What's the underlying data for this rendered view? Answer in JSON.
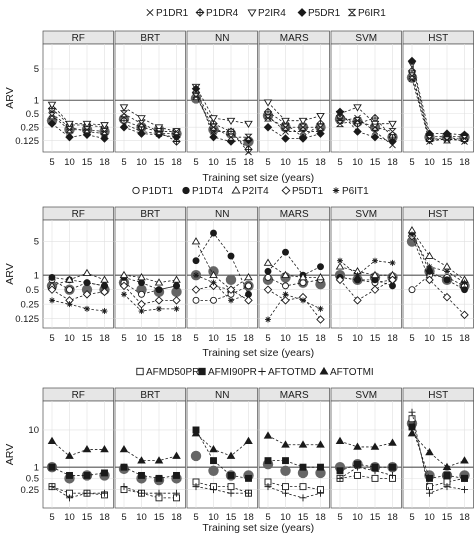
{
  "figure": {
    "panels_title": "",
    "colors": {
      "strip_bg": "#e6e6e6",
      "panel_border": "#4d4d4d",
      "grid": "#e0e0e0",
      "refline": "#555555",
      "series": "#1a1a1a",
      "mean": "#666666"
    }
  },
  "chart_data": [
    {
      "type": "line",
      "title": "",
      "ylabel": "ARV",
      "xlabel": "Training set size (years)",
      "scale_y": "log",
      "ylim": [
        0.07,
        18
      ],
      "yticks": [
        0.125,
        0.25,
        0.5,
        1,
        5
      ],
      "ytick_labels": [
        "0.125",
        "0.25",
        "0.5",
        "1",
        "5"
      ],
      "x": [
        5,
        10,
        15,
        18
      ],
      "xtick_labels": [
        "5",
        "10",
        "15",
        "18"
      ],
      "reference_line": 1,
      "legend": {
        "position": "top"
      },
      "facets": [
        "RF",
        "BRT",
        "NN",
        "MARS",
        "SVM",
        "HST"
      ],
      "series": [
        {
          "name": "P1DR1",
          "marker": "x",
          "values": {
            "RF": [
              0.5,
              0.25,
              0.2,
              0.18
            ],
            "BRT": [
              0.3,
              0.2,
              0.18,
              0.18
            ],
            "NN": [
              1.3,
              0.2,
              0.2,
              0.05
            ],
            "MARS": [
              0.45,
              0.2,
              0.2,
              0.2
            ],
            "SVM": [
              0.35,
              0.4,
              0.2,
              0.1
            ],
            "HST": [
              3.0,
              0.12,
              0.14,
              0.12
            ]
          }
        },
        {
          "name": "P1DR4",
          "marker": "diamond-plus",
          "values": {
            "RF": [
              0.65,
              0.28,
              0.28,
              0.25
            ],
            "BRT": [
              0.35,
              0.25,
              0.2,
              0.12
            ],
            "NN": [
              1.5,
              0.3,
              0.2,
              0.08
            ],
            "MARS": [
              0.55,
              0.3,
              0.15,
              0.3
            ],
            "SVM": [
              0.45,
              0.3,
              0.4,
              0.15
            ],
            "HST": [
              4.5,
              0.13,
              0.15,
              0.13
            ]
          }
        },
        {
          "name": "P2IR4",
          "marker": "triangle-down",
          "values": {
            "RF": [
              0.8,
              0.3,
              0.3,
              0.28
            ],
            "BRT": [
              0.7,
              0.4,
              0.25,
              0.2
            ],
            "NN": [
              2.0,
              0.4,
              0.35,
              0.3
            ],
            "MARS": [
              0.9,
              0.35,
              0.35,
              0.45
            ],
            "SVM": [
              0.5,
              0.7,
              0.3,
              0.3
            ],
            "HST": [
              6.5,
              0.15,
              0.16,
              0.15
            ]
          }
        },
        {
          "name": "P5DR1",
          "marker": "diamond-filled",
          "values": {
            "RF": [
              0.3,
              0.15,
              0.17,
              0.14
            ],
            "BRT": [
              0.25,
              0.18,
              0.17,
              0.15
            ],
            "NN": [
              1.8,
              0.15,
              0.12,
              0.13
            ],
            "MARS": [
              0.25,
              0.14,
              0.14,
              0.18
            ],
            "SVM": [
              0.55,
              0.2,
              0.15,
              0.12
            ],
            "HST": [
              7.5,
              0.18,
              0.18,
              0.17
            ]
          }
        },
        {
          "name": "P6IR1",
          "marker": "hourglass",
          "values": {
            "RF": [
              0.45,
              0.22,
              0.22,
              0.2
            ],
            "BRT": [
              0.5,
              0.3,
              0.2,
              0.2
            ],
            "NN": [
              1.2,
              0.25,
              0.15,
              0.15
            ],
            "MARS": [
              0.4,
              0.25,
              0.25,
              0.25
            ],
            "SVM": [
              0.3,
              0.35,
              0.25,
              0.2
            ],
            "HST": [
              3.5,
              0.14,
              0.13,
              0.14
            ]
          }
        }
      ],
      "mean": {
        "RF": [
          0.35,
          0.22,
          0.22,
          0.2
        ],
        "BRT": [
          0.38,
          0.25,
          0.22,
          0.18
        ],
        "NN": [
          1.1,
          0.22,
          0.18,
          0.12
        ],
        "MARS": [
          0.45,
          0.25,
          0.25,
          0.25
        ],
        "SVM": [
          0.38,
          0.33,
          0.25,
          0.15
        ],
        "HST": [
          3.2,
          0.15,
          0.15,
          0.15
        ]
      }
    },
    {
      "type": "line",
      "title": "",
      "ylabel": "ARV",
      "xlabel": "Training set size (years)",
      "scale_y": "log",
      "ylim": [
        0.08,
        14
      ],
      "yticks": [
        0.125,
        0.25,
        0.5,
        1,
        5
      ],
      "ytick_labels": [
        "0.125",
        "0.25",
        "0.5",
        "1",
        "5"
      ],
      "x": [
        5,
        10,
        15,
        18
      ],
      "xtick_labels": [
        "5",
        "10",
        "15",
        "18"
      ],
      "reference_line": 1,
      "legend": {
        "position": "top"
      },
      "facets": [
        "RF",
        "BRT",
        "NN",
        "MARS",
        "SVM",
        "HST"
      ],
      "series": [
        {
          "name": "P1DT1",
          "marker": "circle-open",
          "values": {
            "RF": [
              0.8,
              0.5,
              0.7,
              0.6
            ],
            "BRT": [
              0.7,
              0.4,
              0.5,
              0.6
            ],
            "NN": [
              0.3,
              0.3,
              0.4,
              0.6
            ],
            "MARS": [
              0.9,
              0.6,
              0.7,
              0.8
            ],
            "SVM": [
              0.9,
              0.8,
              0.7,
              0.8
            ],
            "HST": [
              0.5,
              1.0,
              0.9,
              0.6
            ]
          }
        },
        {
          "name": "P1DT4",
          "marker": "circle-filled",
          "values": {
            "RF": [
              0.9,
              0.8,
              0.7,
              0.6
            ],
            "BRT": [
              0.9,
              0.7,
              0.5,
              0.6
            ],
            "NN": [
              2.0,
              7.5,
              2.5,
              0.4
            ],
            "MARS": [
              1.2,
              3.0,
              1.0,
              1.5
            ],
            "SVM": [
              0.9,
              0.8,
              0.8,
              0.6
            ],
            "HST": [
              7.5,
              1.2,
              0.8,
              0.5
            ]
          }
        },
        {
          "name": "P2IT4",
          "marker": "triangle-up",
          "values": {
            "RF": [
              0.6,
              0.8,
              1.1,
              0.8
            ],
            "BRT": [
              1.0,
              0.9,
              0.7,
              0.8
            ],
            "NN": [
              5.0,
              1.0,
              0.5,
              0.9
            ],
            "MARS": [
              1.8,
              1.0,
              0.9,
              0.9
            ],
            "SVM": [
              1.5,
              1.2,
              1.0,
              1.0
            ],
            "HST": [
              8.5,
              2.5,
              1.5,
              0.8
            ]
          }
        },
        {
          "name": "P5DT1",
          "marker": "diamond-open",
          "values": {
            "RF": [
              0.5,
              0.3,
              0.4,
              0.45
            ],
            "BRT": [
              0.6,
              0.25,
              0.3,
              0.3
            ],
            "NN": [
              0.5,
              0.6,
              0.5,
              0.3
            ],
            "MARS": [
              0.5,
              0.3,
              0.35,
              0.12
            ],
            "SVM": [
              0.8,
              0.3,
              0.5,
              0.8
            ],
            "HST": [
              6.5,
              0.8,
              0.35,
              0.15
            ]
          }
        },
        {
          "name": "P6IT1",
          "marker": "asterisk",
          "values": {
            "RF": [
              0.3,
              0.25,
              0.2,
              0.18
            ],
            "BRT": [
              0.4,
              0.18,
              0.2,
              0.2
            ],
            "NN": [
              1.0,
              0.7,
              0.3,
              0.4
            ],
            "MARS": [
              0.12,
              0.4,
              0.3,
              0.2
            ],
            "SVM": [
              2.0,
              1.0,
              2.0,
              1.8
            ],
            "HST": [
              7.0,
              1.5,
              1.2,
              0.7
            ]
          }
        }
      ],
      "mean": {
        "RF": [
          0.6,
          0.5,
          0.5,
          0.5
        ],
        "BRT": [
          0.7,
          0.5,
          0.45,
          0.45
        ],
        "NN": [
          1.0,
          1.2,
          0.8,
          0.6
        ],
        "MARS": [
          0.8,
          0.9,
          0.7,
          0.65
        ],
        "SVM": [
          1.0,
          0.8,
          0.9,
          0.9
        ],
        "HST": [
          5.0,
          1.2,
          0.8,
          0.6
        ]
      }
    },
    {
      "type": "line",
      "title": "",
      "ylabel": "ARV",
      "xlabel": "Training set size (years)",
      "scale_y": "log",
      "ylim": [
        0.08,
        60
      ],
      "yticks": [
        0.25,
        0.5,
        1,
        10
      ],
      "ytick_labels": [
        "0.25",
        "0.5",
        "1",
        "10"
      ],
      "x": [
        5,
        10,
        15,
        18
      ],
      "xtick_labels": [
        "5",
        "10",
        "15",
        "18"
      ],
      "reference_line": 1,
      "legend": {
        "position": "top"
      },
      "facets": [
        "RF",
        "BRT",
        "NN",
        "MARS",
        "SVM",
        "HST"
      ],
      "series": [
        {
          "name": "AFMD50PR",
          "marker": "square-open",
          "values": {
            "RF": [
              0.3,
              0.2,
              0.2,
              0.18
            ],
            "BRT": [
              0.25,
              0.2,
              0.15,
              0.15
            ],
            "NN": [
              0.4,
              0.3,
              0.3,
              0.2
            ],
            "MARS": [
              0.4,
              0.3,
              0.3,
              0.25
            ],
            "SVM": [
              0.5,
              0.6,
              0.5,
              0.5
            ],
            "HST": [
              20,
              0.3,
              0.4,
              0.5
            ]
          }
        },
        {
          "name": "AFMI90PR",
          "marker": "square-filled",
          "values": {
            "RF": [
              1.0,
              0.6,
              0.6,
              0.7
            ],
            "BRT": [
              1.0,
              0.6,
              0.5,
              0.6
            ],
            "NN": [
              10,
              1.5,
              0.6,
              0.5
            ],
            "MARS": [
              1.5,
              1.5,
              1.0,
              1.0
            ],
            "SVM": [
              0.8,
              1.2,
              1.0,
              1.0
            ],
            "HST": [
              12,
              0.5,
              0.6,
              0.5
            ]
          }
        },
        {
          "name": "AFTOTMD",
          "marker": "plus",
          "values": {
            "RF": [
              0.3,
              0.15,
              0.2,
              0.2
            ],
            "BRT": [
              0.3,
              0.2,
              0.2,
              0.2
            ],
            "NN": [
              0.3,
              0.25,
              0.2,
              0.2
            ],
            "MARS": [
              0.3,
              0.2,
              0.15,
              0.2
            ],
            "SVM": [
              0.5,
              1.0,
              0.8,
              0.6
            ],
            "HST": [
              30,
              0.2,
              0.3,
              0.25
            ]
          }
        },
        {
          "name": "AFTOTMI",
          "marker": "triangle-filled",
          "values": {
            "RF": [
              5.0,
              2.0,
              3.0,
              3.0
            ],
            "BRT": [
              3.0,
              1.5,
              1.5,
              2.0
            ],
            "NN": [
              8.0,
              3.0,
              2.0,
              5.0
            ],
            "MARS": [
              7.0,
              4.0,
              4.0,
              4.0
            ],
            "SVM": [
              5.0,
              3.5,
              3.5,
              4.5
            ],
            "HST": [
              8.0,
              2.5,
              1.0,
              1.5
            ]
          }
        }
      ],
      "mean": {
        "RF": [
          1.0,
          0.5,
          0.6,
          0.6
        ],
        "BRT": [
          0.9,
          0.5,
          0.45,
          0.5
        ],
        "NN": [
          2.0,
          0.8,
          0.6,
          0.6
        ],
        "MARS": [
          1.2,
          0.8,
          0.7,
          0.7
        ],
        "SVM": [
          1.0,
          1.2,
          1.0,
          1.0
        ],
        "HST": [
          15,
          0.6,
          0.6,
          0.6
        ]
      }
    }
  ]
}
